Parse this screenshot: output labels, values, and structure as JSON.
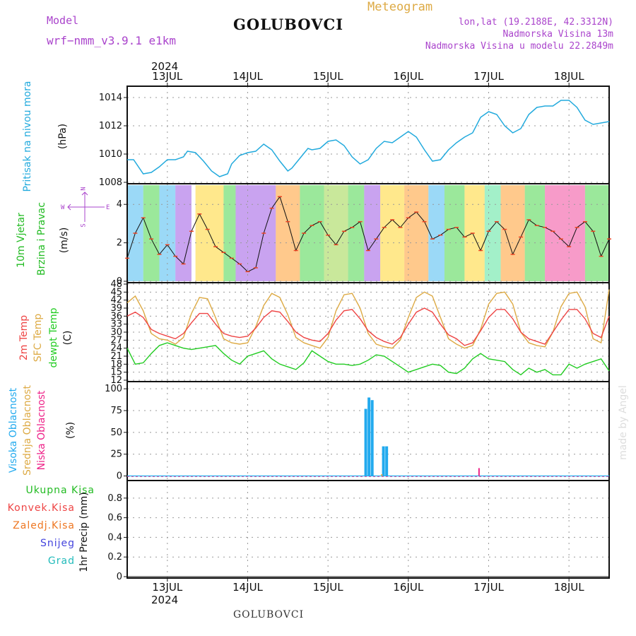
{
  "header": {
    "model_label": "Model",
    "model_name": "wrf−nmm_v3.9.1  e1km",
    "station": "GOLUBOVCI",
    "product": "Meteogram",
    "coords": "lon,lat (19.2188E, 42.3312N)",
    "elevation": "Nadmorska Visina 13m",
    "model_elevation": "Nadmorska Visina u modelu 22.2849m",
    "year_top": "2024",
    "year_bottom": "2024",
    "footer_station": "GOLUBOVCI",
    "credit": "made by Angel"
  },
  "colors": {
    "pressure": "#22aadd",
    "wind_label": "#22bb22",
    "compass": "#aa44cc",
    "temp2m": "#ee4444",
    "sfc": "#ddaa44",
    "dew": "#22cc22",
    "cloud_high": "#22aaee",
    "cloud_mid": "#ddaa44",
    "cloud_low": "#ee2288",
    "precip_total": "#22bb22",
    "precip_conv": "#ee4444",
    "precip_frz": "#ee7722",
    "precip_snow": "#4444dd",
    "precip_hail": "#22bbbb"
  },
  "labels": {
    "pressure": "Pritisak na nivou mora",
    "pressure_unit": "(hPa)",
    "wind1": "10m Vjetar",
    "wind2": "Brzina i Pravac",
    "wind_unit": "(m/s)",
    "compass_n": "N",
    "compass_s": "S",
    "compass_w": "W",
    "compass_e": "E",
    "temp2m": "2m Temp",
    "sfc": "SFC Temp",
    "dew": "dewpt Temp",
    "temp_unit": "(C)",
    "cloud_high": "Visoka Oblacnost",
    "cloud_mid": "Srednja Oblacnost",
    "cloud_low": "Niska Oblacnost",
    "cloud_unit": "(%)",
    "precip_total": "Ukupna Kisa",
    "precip_conv": "Konvek.Kisa",
    "precip_frz": "Zaledj.Kisa",
    "precip_snow": "Snijeg",
    "precip_hail": "Grad",
    "precip_unit": "1hr Precip (mm)"
  },
  "chart_data": {
    "type": "line",
    "x_axis": {
      "days": [
        "13JUL",
        "14JUL",
        "15JUL",
        "16JUL",
        "17JUL",
        "18JUL"
      ],
      "day_index": [
        0,
        1,
        2,
        3,
        4,
        5
      ],
      "range": [
        -0.5,
        5.5
      ]
    },
    "panels": [
      {
        "id": "pressure",
        "type": "line",
        "ylabel": "Pritisak na nivou mora (hPa)",
        "ylim": [
          1008,
          1014.5
        ],
        "yticks": [
          1008,
          1010,
          1012,
          1014
        ],
        "series": [
          {
            "x": [
              -0.5,
              -0.42,
              -0.3,
              -0.2,
              -0.1,
              0,
              0.1,
              0.2,
              0.25,
              0.35,
              0.45,
              0.55,
              0.65,
              0.75,
              0.8,
              0.9,
              1,
              1.1,
              1.2,
              1.3,
              1.4,
              1.5,
              1.55,
              1.65,
              1.75,
              1.8,
              1.9,
              2,
              2.1,
              2.2,
              2.3,
              2.4,
              2.5,
              2.6,
              2.7,
              2.8,
              2.9,
              3,
              3.1,
              3.2,
              3.3,
              3.4,
              3.5,
              3.6,
              3.7,
              3.8,
              3.9,
              4,
              4.1,
              4.2,
              4.3,
              4.4,
              4.5,
              4.6,
              4.7,
              4.8,
              4.9,
              5,
              5.1,
              5.2,
              5.3,
              5.4,
              5.5
            ],
            "values": [
              1009.6,
              1009.6,
              1008.6,
              1008.7,
              1009.1,
              1009.6,
              1009.6,
              1009.8,
              1010.2,
              1010.1,
              1009.5,
              1008.8,
              1008.4,
              1008.6,
              1009.3,
              1009.9,
              1010.1,
              1010.2,
              1010.7,
              1010.3,
              1009.5,
              1008.8,
              1009,
              1009.7,
              1010.4,
              1010.3,
              1010.4,
              1010.9,
              1011,
              1010.6,
              1009.8,
              1009.3,
              1009.6,
              1010.4,
              1010.9,
              1010.8,
              1011.2,
              1011.6,
              1011.2,
              1010.3,
              1009.5,
              1009.6,
              1010.3,
              1010.8,
              1011.2,
              1011.5,
              1012.6,
              1013,
              1012.8,
              1012,
              1011.5,
              1011.8,
              1012.8,
              1013.3,
              1013.4,
              1013.4,
              1013.8,
              1013.8,
              1013.3,
              1012.4,
              1012.1,
              1012.2,
              1012.3
            ]
          }
        ]
      },
      {
        "id": "wind",
        "type": "line",
        "ylabel": "10m Vjetar Brzina i Pravac (m/s)",
        "ylim": [
          0,
          5
        ],
        "yticks": [
          0,
          2,
          4
        ],
        "series": [
          {
            "x": [
              -0.5,
              -0.4,
              -0.3,
              -0.2,
              -0.1,
              0,
              0.1,
              0.2,
              0.3,
              0.4,
              0.5,
              0.6,
              0.7,
              0.8,
              0.9,
              1,
              1.1,
              1.2,
              1.3,
              1.4,
              1.5,
              1.6,
              1.7,
              1.8,
              1.9,
              2,
              2.1,
              2.2,
              2.3,
              2.4,
              2.5,
              2.6,
              2.7,
              2.8,
              2.9,
              3,
              3.1,
              3.2,
              3.3,
              3.4,
              3.5,
              3.6,
              3.7,
              3.8,
              3.9,
              4,
              4.1,
              4.2,
              4.3,
              4.4,
              4.5,
              4.6,
              4.7,
              4.8,
              4.9,
              5,
              5.1,
              5.2,
              5.3,
              5.4,
              5.5
            ],
            "values": [
              1.2,
              2.5,
              3.3,
              2.2,
              1.4,
              1.9,
              1.3,
              0.9,
              2.6,
              3.5,
              2.7,
              1.8,
              1.5,
              1.2,
              0.9,
              0.5,
              0.7,
              2.5,
              3.8,
              4.4,
              3.1,
              1.6,
              2.5,
              2.9,
              3.1,
              2.4,
              1.9,
              2.6,
              2.8,
              3.1,
              1.6,
              2.2,
              2.8,
              3.2,
              2.8,
              3.3,
              3.6,
              3.1,
              2.2,
              2.4,
              2.7,
              2.8,
              2.3,
              2.5,
              1.6,
              2.6,
              3.1,
              2.7,
              1.4,
              2.3,
              3.2,
              2.9,
              2.8,
              2.6,
              2.2,
              1.8,
              2.8,
              3.1,
              2.6,
              1.3,
              2.2
            ]
          }
        ]
      },
      {
        "id": "temperature",
        "type": "line",
        "ylabel": "Temp (C)",
        "ylim": [
          12,
          48
        ],
        "yticks": [
          12,
          15,
          18,
          21,
          24,
          27,
          30,
          33,
          36,
          39,
          42,
          45,
          48
        ],
        "series": [
          {
            "name": "2m Temp",
            "x": [
              -0.5,
              -0.4,
              -0.3,
              -0.2,
              -0.1,
              0,
              0.1,
              0.2,
              0.3,
              0.4,
              0.5,
              0.6,
              0.7,
              0.8,
              0.9,
              1,
              1.1,
              1.2,
              1.3,
              1.4,
              1.5,
              1.6,
              1.7,
              1.8,
              1.9,
              2,
              2.1,
              2.2,
              2.3,
              2.4,
              2.5,
              2.6,
              2.7,
              2.8,
              2.9,
              3,
              3.1,
              3.2,
              3.3,
              3.4,
              3.5,
              3.6,
              3.7,
              3.8,
              3.9,
              4,
              4.1,
              4.2,
              4.3,
              4.4,
              4.5,
              4.6,
              4.7,
              4.8,
              4.9,
              5,
              5.1,
              5.2,
              5.3,
              5.4,
              5.5
            ],
            "values": [
              36,
              37.5,
              35.5,
              31,
              29.5,
              28.5,
              27.5,
              29.5,
              33.5,
              37,
              37,
              33,
              29.5,
              28.5,
              28,
              28.5,
              31.5,
              35.5,
              38,
              37.5,
              34,
              30,
              28,
              27,
              26.5,
              29.5,
              34.5,
              38,
              38.5,
              35,
              30.5,
              28,
              26.5,
              25.5,
              28,
              33,
              37.5,
              39,
              37.5,
              33,
              29,
              27.5,
              25,
              26,
              30.5,
              35.5,
              38.5,
              38.5,
              35,
              30,
              27.5,
              26.5,
              25.5,
              30,
              34.5,
              38.5,
              38.5,
              35,
              29.5,
              28,
              36
            ]
          },
          {
            "name": "SFC Temp",
            "x": [
              -0.5,
              -0.4,
              -0.3,
              -0.2,
              -0.1,
              0,
              0.1,
              0.2,
              0.3,
              0.4,
              0.5,
              0.6,
              0.7,
              0.8,
              0.9,
              1,
              1.1,
              1.2,
              1.3,
              1.4,
              1.5,
              1.6,
              1.7,
              1.8,
              1.9,
              2,
              2.1,
              2.2,
              2.3,
              2.4,
              2.5,
              2.6,
              2.7,
              2.8,
              2.9,
              3,
              3.1,
              3.2,
              3.3,
              3.4,
              3.5,
              3.6,
              3.7,
              3.8,
              3.9,
              4,
              4.1,
              4.2,
              4.3,
              4.4,
              4.5,
              4.6,
              4.7,
              4.8,
              4.9,
              5,
              5.1,
              5.2,
              5.3,
              5.4,
              5.5
            ],
            "values": [
              41,
              43.5,
              38,
              29.5,
              27.5,
              27,
              25.5,
              28,
              37,
              43,
              42.5,
              35.5,
              27.5,
              26,
              25.5,
              26,
              32,
              40,
              44.5,
              43,
              36.5,
              28,
              26,
              25,
              24,
              28,
              38,
              44,
              44.5,
              39,
              29.5,
              25.5,
              24.5,
              24,
              27,
              35.5,
              43,
              45,
              43.5,
              35.5,
              27.5,
              25.5,
              24,
              25,
              31,
              40.5,
              44.5,
              45,
              40.5,
              30,
              26,
              25,
              24.5,
              30,
              39.5,
              44.5,
              45,
              39.5,
              27.5,
              26,
              46
            ]
          },
          {
            "name": "dewpt Temp",
            "x": [
              -0.5,
              -0.4,
              -0.3,
              -0.2,
              -0.1,
              0,
              0.1,
              0.2,
              0.3,
              0.4,
              0.5,
              0.6,
              0.7,
              0.8,
              0.9,
              1,
              1.1,
              1.2,
              1.3,
              1.4,
              1.5,
              1.6,
              1.7,
              1.8,
              1.9,
              2,
              2.1,
              2.2,
              2.3,
              2.4,
              2.5,
              2.6,
              2.7,
              2.8,
              2.9,
              3,
              3.1,
              3.2,
              3.3,
              3.4,
              3.5,
              3.6,
              3.7,
              3.8,
              3.9,
              4,
              4.1,
              4.2,
              4.3,
              4.4,
              4.5,
              4.6,
              4.7,
              4.8,
              4.9,
              5,
              5.1,
              5.2,
              5.3,
              5.4,
              5.5
            ],
            "values": [
              24,
              18,
              18.5,
              22,
              25,
              26,
              25,
              24,
              23.5,
              24,
              24.5,
              25,
              22,
              19.5,
              18,
              21,
              22,
              23,
              20,
              18,
              17,
              16,
              18.5,
              23,
              21,
              19,
              18,
              18,
              17.5,
              18,
              19.5,
              21.5,
              21,
              19,
              17,
              15,
              16,
              17,
              18,
              17.5,
              15,
              14.5,
              16.5,
              20,
              22,
              20,
              19.5,
              19,
              16,
              14,
              16.5,
              15,
              16,
              14,
              14,
              18,
              16.5,
              18,
              19,
              20,
              15.5
            ]
          }
        ]
      },
      {
        "id": "clouds",
        "type": "bar",
        "ylabel": "Oblacnost (%)",
        "ylim": [
          -2,
          105
        ],
        "yticks": [
          0,
          25,
          50,
          75,
          100
        ],
        "series": [
          {
            "name": "Visoka Oblacnost",
            "x": [
              2.47,
              2.51,
              2.55,
              2.69,
              2.73
            ],
            "values": [
              77,
              90,
              87,
              34,
              34
            ]
          },
          {
            "name": "Srednja Oblacnost",
            "x": [
              2.67
            ],
            "values": [
              2
            ]
          },
          {
            "name": "Niska Oblacnost",
            "x": [
              3.88
            ],
            "values": [
              9
            ]
          }
        ]
      },
      {
        "id": "precip",
        "type": "bar",
        "ylabel": "1hr Precip (mm)",
        "ylim": [
          0,
          0.95
        ],
        "yticks": [
          0,
          0.2,
          0.4,
          0.6,
          0.8
        ],
        "series": [
          {
            "name": "Ukupna Kisa",
            "x": [],
            "values": []
          },
          {
            "name": "Konvek.Kisa",
            "x": [],
            "values": []
          },
          {
            "name": "Zaledj.Kisa",
            "x": [],
            "values": []
          },
          {
            "name": "Snijeg",
            "x": [],
            "values": []
          },
          {
            "name": "Grad",
            "x": [],
            "values": []
          }
        ]
      }
    ]
  }
}
